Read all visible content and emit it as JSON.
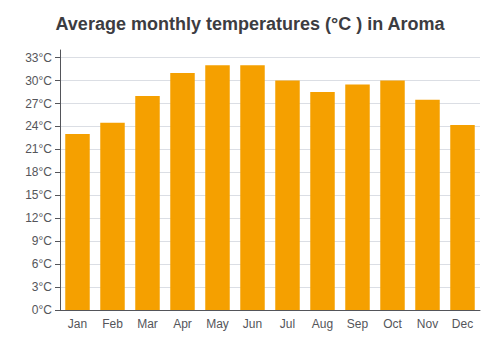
{
  "chart_data": {
    "type": "bar",
    "title": "Average monthly temperatures (°C ) in Aroma",
    "categories": [
      "Jan",
      "Feb",
      "Mar",
      "Apr",
      "May",
      "Jun",
      "Jul",
      "Aug",
      "Sep",
      "Oct",
      "Nov",
      "Dec"
    ],
    "values": [
      23,
      24.5,
      28,
      31,
      32,
      32,
      30,
      28.5,
      29.5,
      30,
      27.5,
      24.2
    ],
    "color": "#F5A000",
    "ylim": [
      0,
      34
    ],
    "yticks": [
      {
        "value": 0,
        "label": "0°C"
      },
      {
        "value": 3,
        "label": "3°C"
      },
      {
        "value": 6,
        "label": "6°C"
      },
      {
        "value": 9,
        "label": "9°C"
      },
      {
        "value": 12,
        "label": "12°C"
      },
      {
        "value": 15,
        "label": "15°C"
      },
      {
        "value": 18,
        "label": "18°C"
      },
      {
        "value": 21,
        "label": "21°C"
      },
      {
        "value": 24,
        "label": "24°C"
      },
      {
        "value": 27,
        "label": "27°C"
      },
      {
        "value": 30,
        "label": "30°C"
      },
      {
        "value": 33,
        "label": "33°C"
      }
    ],
    "grid": true
  }
}
